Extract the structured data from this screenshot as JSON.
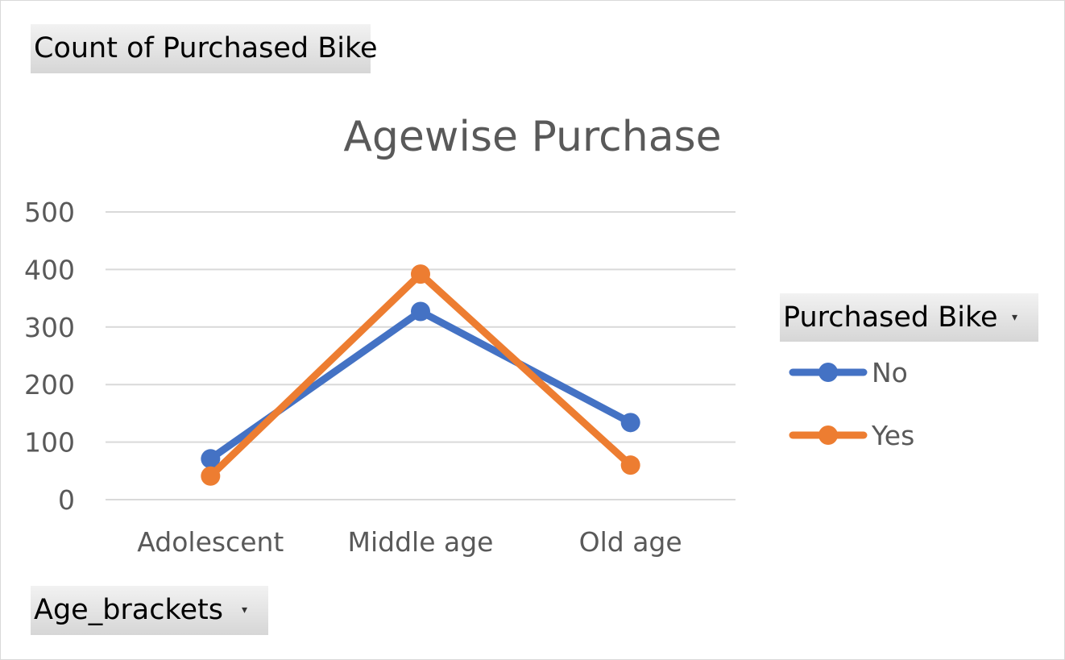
{
  "pivot_fields": {
    "values": "Count of Purchased Bike",
    "legend": "Purchased Bike",
    "axis": "Age_brackets"
  },
  "chart_data": {
    "type": "line",
    "title": "Agewise Purchase",
    "xlabel": "",
    "ylabel": "",
    "categories": [
      "Adolescent",
      "Middle age",
      "Old age"
    ],
    "series": [
      {
        "name": "No",
        "color": "#4472C4",
        "values": [
          71,
          327,
          134
        ]
      },
      {
        "name": "Yes",
        "color": "#ED7D31",
        "values": [
          41,
          392,
          60
        ]
      }
    ],
    "ylim": [
      0,
      500
    ],
    "yticks": [
      0,
      100,
      200,
      300,
      400,
      500
    ],
    "grid": true,
    "legend_position": "right"
  }
}
